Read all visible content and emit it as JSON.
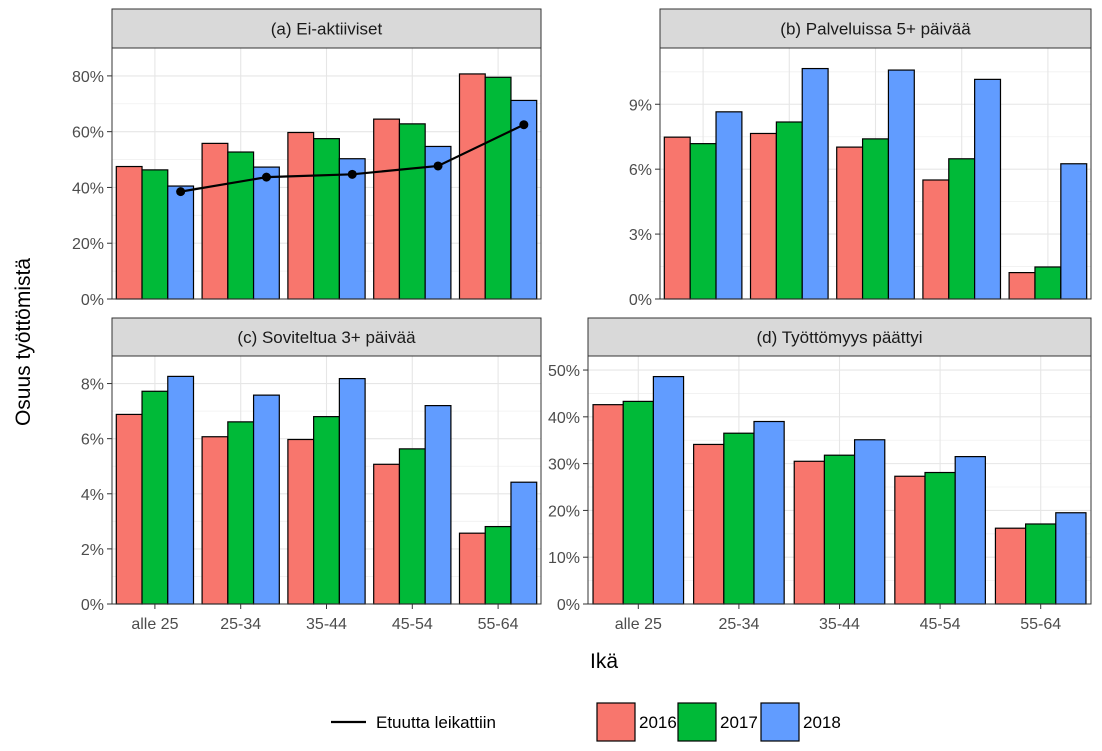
{
  "chart_data": {
    "type": "bar",
    "ylabel": "Osuus työttömistä",
    "xlabel": "Ikä",
    "categories": [
      "alle 25",
      "25-34",
      "35-44",
      "45-54",
      "55-64"
    ],
    "legend": {
      "line_label": "Etuutta leikattiin",
      "years": [
        "2016",
        "2017",
        "2018"
      ],
      "colors": [
        "#F8766D",
        "#00BA38",
        "#619CFF"
      ],
      "line_color": "#000000"
    },
    "grid": true,
    "legend_position": "bottom",
    "panels": [
      {
        "title": "(a) Ei-aktiiviset",
        "ylim": [
          0,
          0.9
        ],
        "yticks": [
          0,
          0.2,
          0.4,
          0.6,
          0.8
        ],
        "ytick_labels": [
          "0%",
          "20%",
          "40%",
          "60%",
          "80%"
        ],
        "series": [
          {
            "name": "2016",
            "values": [
              0.475,
              0.558,
              0.597,
              0.645,
              0.807
            ]
          },
          {
            "name": "2017",
            "values": [
              0.463,
              0.527,
              0.575,
              0.628,
              0.795
            ]
          },
          {
            "name": "2018",
            "values": [
              0.405,
              0.473,
              0.503,
              0.547,
              0.712
            ]
          }
        ],
        "line": {
          "name": "Etuutta leikattiin",
          "values": [
            0.385,
            0.437,
            0.447,
            0.477,
            0.625
          ]
        }
      },
      {
        "title": "(b) Palveluissa 5+ päivää",
        "ylim": [
          0,
          0.116
        ],
        "yticks": [
          0,
          0.03,
          0.06,
          0.09
        ],
        "ytick_labels": [
          "0%",
          "3%",
          "6%",
          "9%"
        ],
        "series": [
          {
            "name": "2016",
            "values": [
              0.0748,
              0.0765,
              0.0702,
              0.055,
              0.0122
            ]
          },
          {
            "name": "2017",
            "values": [
              0.0718,
              0.0818,
              0.074,
              0.0648,
              0.0148
            ]
          },
          {
            "name": "2018",
            "values": [
              0.0865,
              0.1065,
              0.1058,
              0.1015,
              0.0625
            ]
          }
        ]
      },
      {
        "title": "(c) Soviteltua 3+ päivää",
        "ylim": [
          0,
          0.09
        ],
        "yticks": [
          0,
          0.02,
          0.04,
          0.06,
          0.08
        ],
        "ytick_labels": [
          "0%",
          "2%",
          "4%",
          "6%",
          "8%"
        ],
        "series": [
          {
            "name": "2016",
            "values": [
              0.0688,
              0.0607,
              0.0597,
              0.0507,
              0.0257
            ]
          },
          {
            "name": "2017",
            "values": [
              0.0772,
              0.0661,
              0.068,
              0.0563,
              0.0281
            ]
          },
          {
            "name": "2018",
            "values": [
              0.0826,
              0.0758,
              0.0818,
              0.072,
              0.0442
            ]
          }
        ]
      },
      {
        "title": "(d) Työttömyys päättyi",
        "ylim": [
          0,
          0.53
        ],
        "yticks": [
          0,
          0.1,
          0.2,
          0.3,
          0.4,
          0.5
        ],
        "ytick_labels": [
          "0%",
          "10%",
          "20%",
          "30%",
          "40%",
          "50%"
        ],
        "series": [
          {
            "name": "2016",
            "values": [
              0.426,
              0.341,
              0.305,
              0.273,
              0.162
            ]
          },
          {
            "name": "2017",
            "values": [
              0.433,
              0.365,
              0.318,
              0.281,
              0.171
            ]
          },
          {
            "name": "2018",
            "values": [
              0.486,
              0.39,
              0.351,
              0.315,
              0.195
            ]
          }
        ]
      }
    ]
  }
}
